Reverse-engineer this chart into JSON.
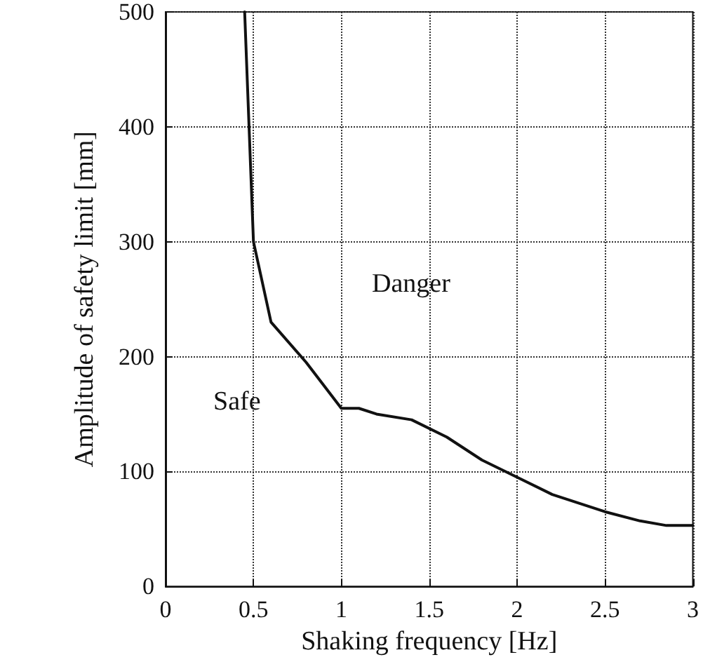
{
  "chart_data": {
    "type": "line",
    "xlabel": "Shaking frequency [Hz]",
    "ylabel": "Amplitude of safety limit [mm]",
    "x": [
      0.45,
      0.5,
      0.6,
      0.8,
      1.0,
      1.1,
      1.2,
      1.4,
      1.6,
      1.8,
      2.0,
      2.2,
      2.5,
      2.7,
      2.85,
      3.0
    ],
    "series": [
      {
        "color": "#111111",
        "values": [
          500,
          300,
          230,
          195,
          155,
          155,
          150,
          145,
          130,
          110,
          95,
          80,
          65,
          57,
          53,
          53
        ]
      }
    ],
    "xlim": [
      0,
      3
    ],
    "xticks": [
      0,
      0.5,
      1,
      1.5,
      2,
      2.5,
      3
    ],
    "ylim": [
      0,
      500
    ],
    "yticks": [
      0,
      100,
      200,
      300,
      400,
      500
    ],
    "grid": true,
    "marker": "none",
    "line_style": "solid",
    "annotations": [
      "Danger",
      "Safe"
    ]
  }
}
